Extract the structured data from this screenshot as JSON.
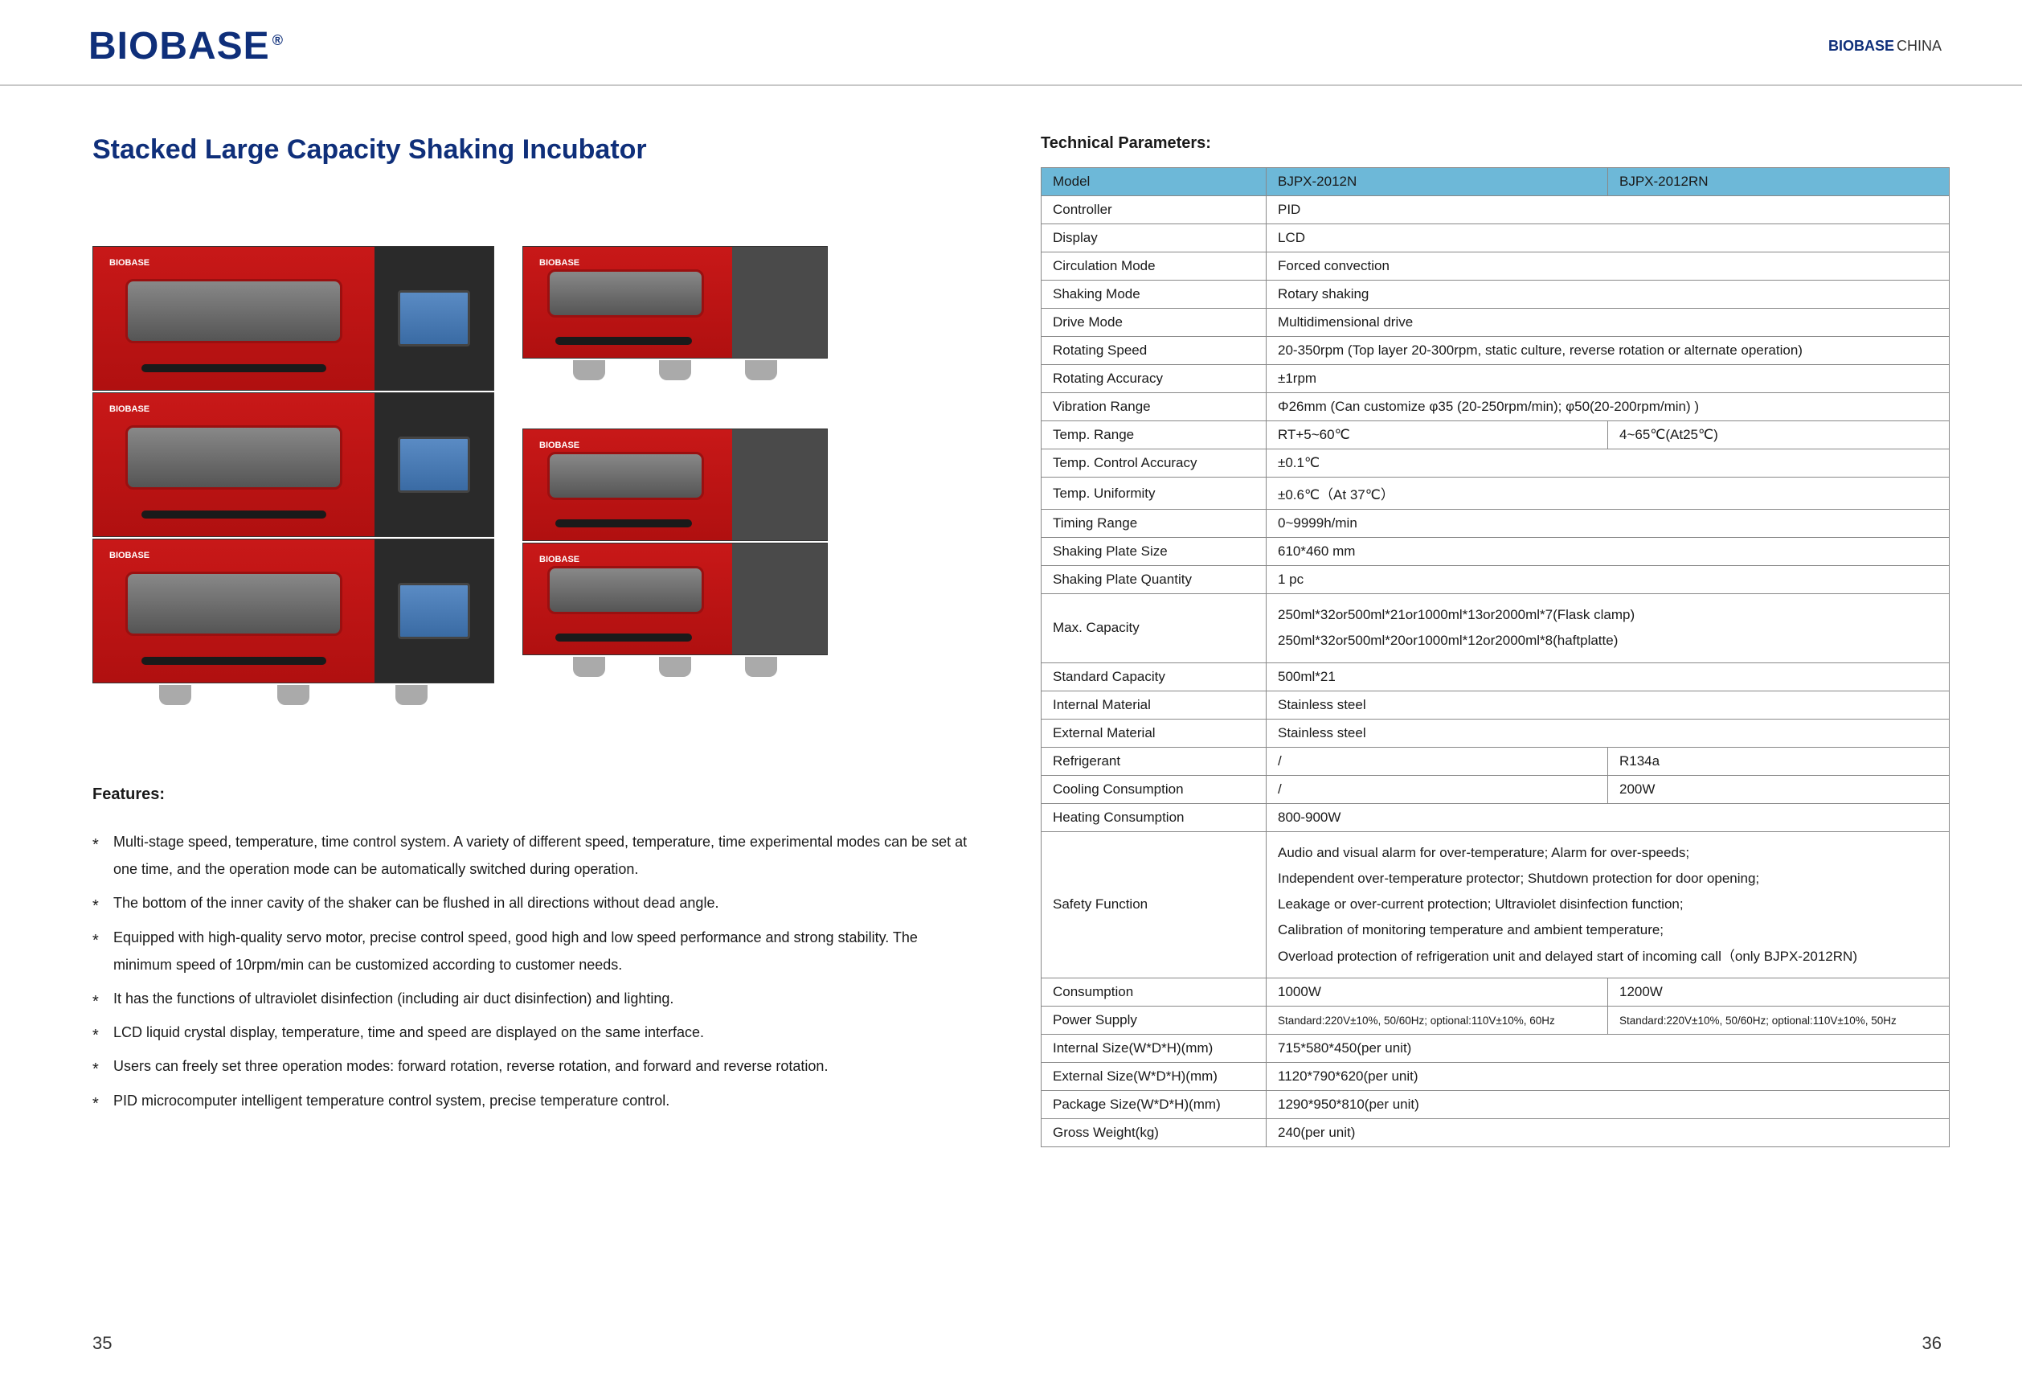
{
  "header": {
    "logo": "BIOBASE",
    "logo_sup": "®",
    "right_brand": "BIOBASE",
    "right_country": "CHINA"
  },
  "title": "Stacked Large Capacity Shaking Incubator",
  "unit_logo": "BIOBASE",
  "features_heading": "Features:",
  "features": [
    "Multi-stage speed, temperature, time control system. A variety of different speed, temperature, time experimental modes can be set at one time, and the operation mode can be automatically switched during operation.",
    "The bottom of the inner cavity of the shaker can be flushed in all directions without dead angle.",
    "Equipped with high-quality servo motor, precise control speed, good high and low speed performance and strong stability. The minimum speed of 10rpm/min can be customized according to customer needs.",
    "It has the functions of ultraviolet disinfection (including air duct disinfection) and lighting.",
    "LCD liquid crystal display, temperature, time and speed are displayed on the same interface.",
    "Users can freely set three operation modes: forward rotation, reverse rotation, and forward and reverse rotation.",
    "PID microcomputer intelligent temperature control system, precise temperature control."
  ],
  "tech_heading": "Technical Parameters:",
  "table": {
    "header": {
      "c0": "Model",
      "c1": "BJPX-2012N",
      "c2": "BJPX-2012RN"
    },
    "rows": [
      {
        "label": "Controller",
        "val": "PID",
        "span": 2
      },
      {
        "label": "Display",
        "val": "LCD",
        "span": 2
      },
      {
        "label": "Circulation Mode",
        "val": "Forced convection",
        "span": 2
      },
      {
        "label": "Shaking Mode",
        "val": "Rotary shaking",
        "span": 2
      },
      {
        "label": "Drive Mode",
        "val": "Multidimensional drive",
        "span": 2
      },
      {
        "label": "Rotating Speed",
        "val": "20-350rpm (Top layer 20-300rpm, static culture, reverse rotation or alternate operation)",
        "span": 2
      },
      {
        "label": "Rotating Accuracy",
        "val": "±1rpm",
        "span": 2
      },
      {
        "label": "Vibration Range",
        "val": "Φ26mm (Can customize φ35 (20-250rpm/min); φ50(20-200rpm/min) )",
        "span": 2
      },
      {
        "label": "Temp. Range",
        "v1": "RT+5~60℃",
        "v2": "4~65℃(At25℃)",
        "span": 1
      },
      {
        "label": "Temp. Control Accuracy",
        "val": "±0.1℃",
        "span": 2
      },
      {
        "label": "Temp. Uniformity",
        "val": "±0.6℃（At 37℃）",
        "span": 2
      },
      {
        "label": "Timing Range",
        "val": "0~9999h/min",
        "span": 2
      },
      {
        "label": "Shaking Plate Size",
        "val": "610*460 mm",
        "span": 2
      },
      {
        "label": "Shaking Plate Quantity",
        "val": "1 pc",
        "span": 2
      },
      {
        "label": "Max. Capacity",
        "val": "250ml*32or500ml*21or1000ml*13or2000ml*7(Flask clamp)\n250ml*32or500ml*20or1000ml*12or2000ml*8(haftplatte)",
        "span": 2,
        "multi": true
      },
      {
        "label": "Standard Capacity",
        "val": "500ml*21",
        "span": 2
      },
      {
        "label": "Internal Material",
        "val": "Stainless steel",
        "span": 2
      },
      {
        "label": "External Material",
        "val": "Stainless steel",
        "span": 2
      },
      {
        "label": "Refrigerant",
        "v1": "/",
        "v2": "R134a",
        "span": 1
      },
      {
        "label": "Cooling Consumption",
        "v1": "/",
        "v2": "200W",
        "span": 1
      },
      {
        "label": "Heating Consumption",
        "val": "800-900W",
        "span": 2
      },
      {
        "label": "Safety Function",
        "val": "Audio and visual alarm for over-temperature; Alarm for over-speeds;\nIndependent over-temperature protector; Shutdown protection for door opening;\nLeakage or over-current protection; Ultraviolet disinfection function;\nCalibration of monitoring temperature and ambient temperature;\nOverload protection of refrigeration unit and delayed start of incoming call（only BJPX-2012RN)",
        "span": 2,
        "multi": true
      },
      {
        "label": "Consumption",
        "v1": "1000W",
        "v2": "1200W",
        "span": 1
      },
      {
        "label": "Power Supply",
        "v1": "Standard:220V±10%, 50/60Hz; optional:110V±10%, 60Hz",
        "v2": "Standard:220V±10%, 50/60Hz; optional:110V±10%, 50Hz",
        "span": 1,
        "small": true
      },
      {
        "label": "Internal Size(W*D*H)(mm)",
        "val": "715*580*450(per unit)",
        "span": 2
      },
      {
        "label": "External Size(W*D*H)(mm)",
        "val": "1120*790*620(per unit)",
        "span": 2
      },
      {
        "label": "Package Size(W*D*H)(mm)",
        "val": "1290*950*810(per unit)",
        "span": 2
      },
      {
        "label": "Gross Weight(kg)",
        "val": "240(per unit)",
        "span": 2
      }
    ]
  },
  "page_left": "35",
  "page_right": "36",
  "colors": {
    "brand": "#0f2f7a",
    "header_row": "#6db8d8",
    "border": "#888888",
    "text": "#1a1a1a",
    "unit_red": "#c81818",
    "unit_dark": "#2a2a2a"
  }
}
